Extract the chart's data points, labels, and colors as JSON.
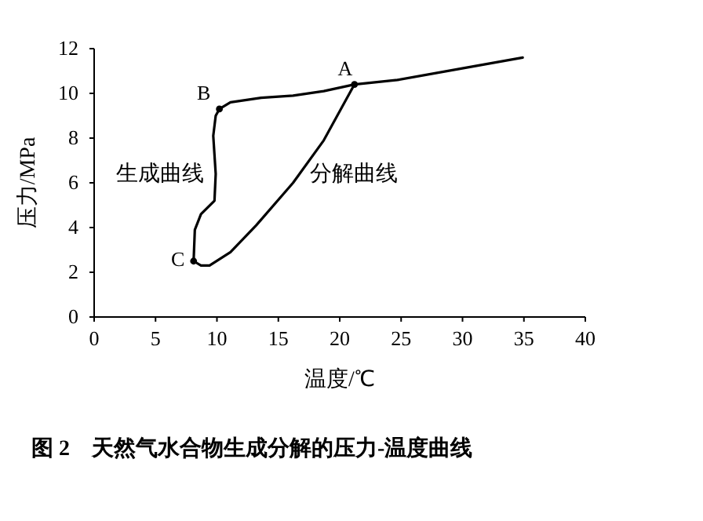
{
  "chart_data": {
    "type": "line",
    "title": "图 2　天然气水合物生成分解的压力-温度曲线",
    "xlabel": "温度/℃",
    "ylabel": "压力/MPa",
    "xlim": [
      0,
      40
    ],
    "xticks": [
      0,
      5,
      10,
      15,
      20,
      25,
      30,
      35,
      40
    ],
    "ylim": [
      0,
      12
    ],
    "yticks": [
      0,
      2,
      4,
      6,
      8,
      10,
      12
    ],
    "grid": false,
    "series": [
      {
        "name": "生成曲线",
        "color": "#000000",
        "x": [
          8.1,
          8.2,
          8.7,
          9.8,
          9.9,
          9.7,
          9.9,
          10.2,
          11.1,
          13.6,
          16.2,
          18.7,
          21.2,
          24.7,
          29.8,
          34.9
        ],
        "values": [
          2.5,
          3.9,
          4.6,
          5.2,
          6.4,
          8.1,
          9.0,
          9.3,
          9.6,
          9.8,
          9.9,
          10.1,
          10.4,
          10.6,
          11.1,
          11.6
        ]
      },
      {
        "name": "分解曲线",
        "color": "#000000",
        "x": [
          8.1,
          8.7,
          9.4,
          11.1,
          13.2,
          16.2,
          18.7,
          21.2
        ],
        "values": [
          2.5,
          2.3,
          2.3,
          2.9,
          4.1,
          6.0,
          7.9,
          10.4
        ]
      },
      {
        "type": "scatter",
        "color": "#000000",
        "x": [
          21.2,
          10.2,
          8.1
        ],
        "values": [
          10.4,
          9.3,
          2.5
        ]
      }
    ],
    "annotations": [
      {
        "text": "A",
        "x": 21.2,
        "y": 10.4
      },
      {
        "text": "B",
        "x": 10.2,
        "y": 9.3
      },
      {
        "text": "C",
        "x": 8.1,
        "y": 2.5
      }
    ]
  }
}
